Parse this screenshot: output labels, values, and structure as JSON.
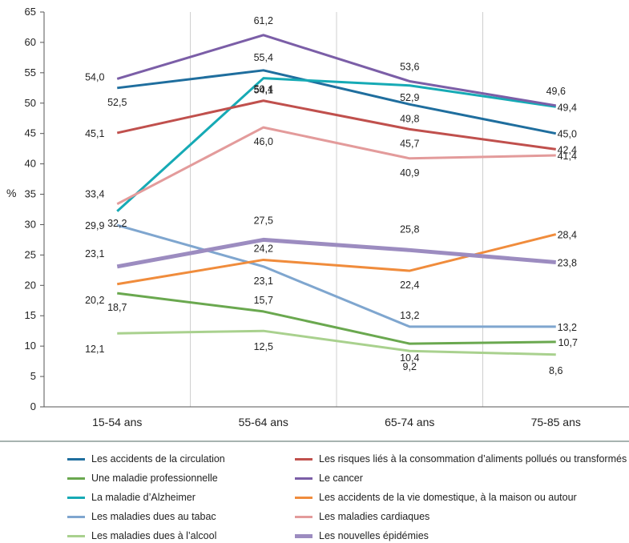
{
  "chart_data": {
    "type": "line",
    "ylabel": "%",
    "ylim": [
      0,
      65
    ],
    "yticks": [
      0,
      5,
      10,
      15,
      20,
      25,
      30,
      35,
      40,
      45,
      50,
      55,
      60,
      65
    ],
    "categories": [
      "15-54 ans",
      "55-64 ans",
      "65-74 ans",
      "75-85 ans"
    ],
    "grid": "vertical separators between categories",
    "legend_position": "bottom",
    "series": [
      {
        "name": "Les accidents de la circulation",
        "color": "#1f6e9e",
        "values": [
          52.5,
          55.4,
          49.8,
          45.0
        ],
        "labels": [
          "52,5",
          "55,4",
          "49,8",
          "45,0"
        ]
      },
      {
        "name": "Une maladie professionnelle",
        "color": "#6aa84f",
        "values": [
          18.7,
          15.7,
          10.4,
          10.7
        ],
        "labels": [
          "18,7",
          "15,7",
          "10,4",
          "10,7"
        ]
      },
      {
        "name": "La maladie d’Alzheimer",
        "color": "#16aab5",
        "values": [
          32.2,
          54.1,
          52.9,
          49.4
        ],
        "labels": [
          "32,2",
          "54,1",
          "52,9",
          "49,4"
        ]
      },
      {
        "name": "Les maladies dues au tabac",
        "color": "#7fa6cf",
        "values": [
          29.9,
          23.1,
          13.2,
          13.2
        ],
        "labels": [
          "29,9",
          "23,1",
          "13,2",
          "13,2"
        ]
      },
      {
        "name": "Les maladies dues à l’alcool",
        "color": "#a9d18e",
        "values": [
          12.1,
          12.5,
          9.2,
          8.6
        ],
        "labels": [
          "12,1",
          "12,5",
          "9,2",
          "8,6"
        ]
      },
      {
        "name": "Les risques liés à la consommation d’aliments pollués ou transformés",
        "color": "#c0504d",
        "values": [
          45.1,
          50.4,
          45.7,
          42.4
        ],
        "labels": [
          "45,1",
          "50,4",
          "45,7",
          "42,4"
        ]
      },
      {
        "name": "Le cancer",
        "color": "#7b5ea7",
        "values": [
          54.0,
          61.2,
          53.6,
          49.6
        ],
        "labels": [
          "54,0",
          "61,2",
          "53,6",
          "49,6"
        ]
      },
      {
        "name": "Les accidents de la vie domestique, à la maison ou autour",
        "color": "#f08c3c",
        "values": [
          20.2,
          24.2,
          22.4,
          28.4
        ],
        "labels": [
          "20,2",
          "24,2",
          "22,4",
          "28,4"
        ]
      },
      {
        "name": "Les maladies cardiaques",
        "color": "#e39b9b",
        "values": [
          33.4,
          46.0,
          40.9,
          41.4
        ],
        "labels": [
          "33,4",
          "46,0",
          "40,9",
          "41,4"
        ]
      },
      {
        "name": "Les nouvelles épidémies",
        "color": "#9c8cc0",
        "values": [
          23.1,
          27.5,
          25.8,
          23.8
        ],
        "labels": [
          "23,1",
          "27,5",
          "25,8",
          "23,8"
        ],
        "thick": true
      }
    ]
  }
}
